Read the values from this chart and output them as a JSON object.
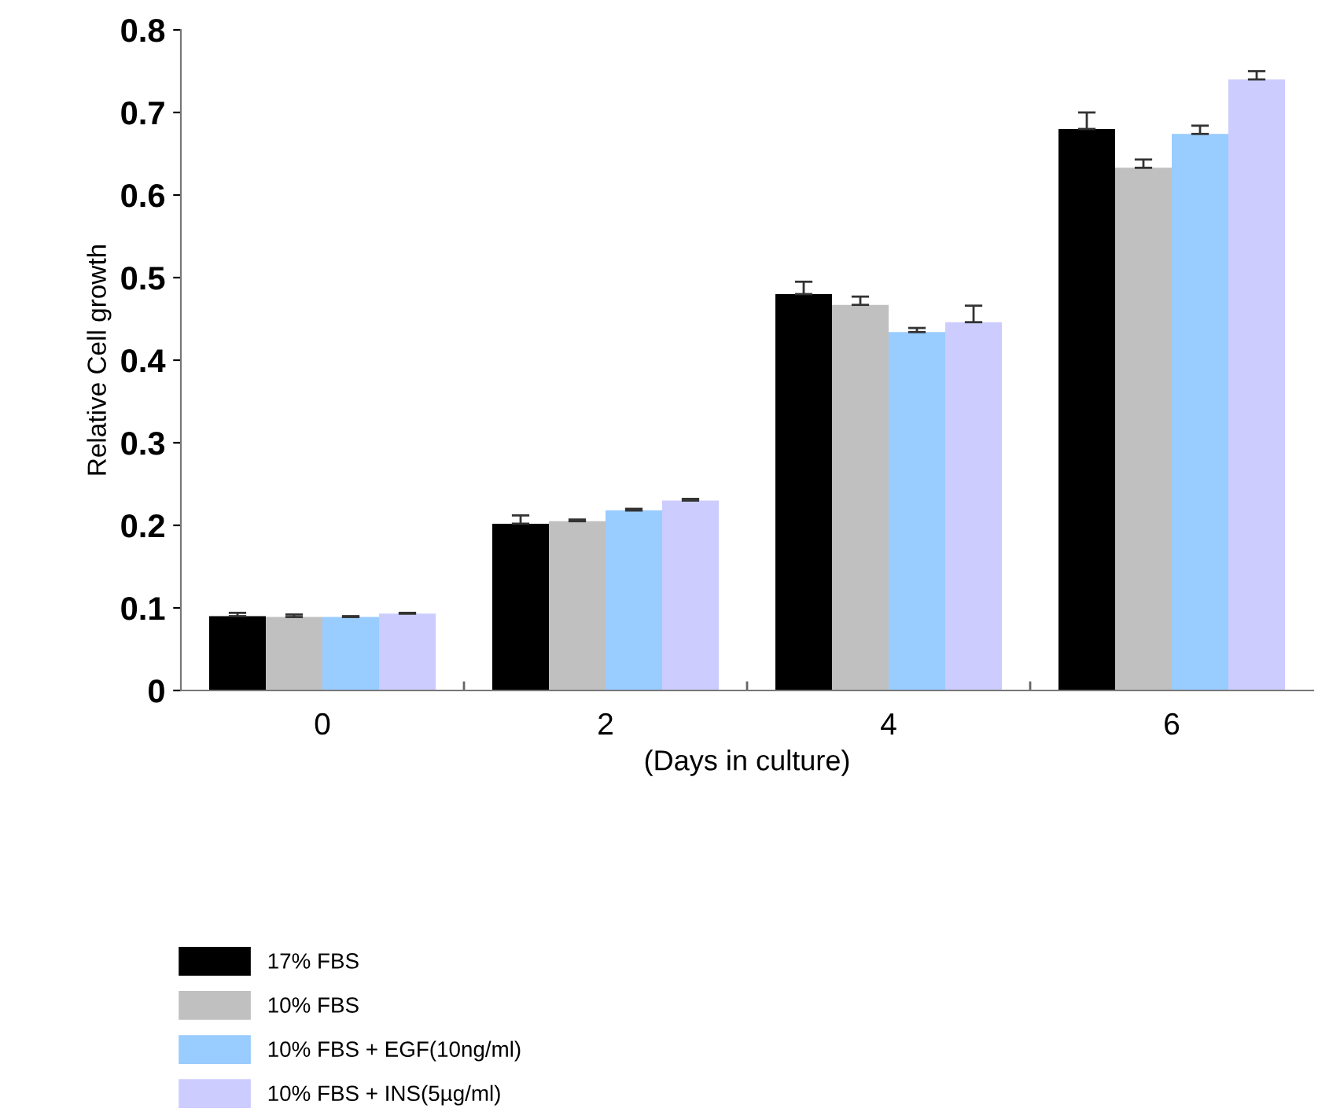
{
  "chart_data": {
    "type": "bar",
    "xlabel": "(Days in culture)",
    "ylabel": "Relative Cell growth",
    "categories": [
      "0",
      "2",
      "4",
      "6"
    ],
    "series": [
      {
        "name": "17% FBS",
        "color": "#000000",
        "values": [
          0.09,
          0.202,
          0.48,
          0.68
        ],
        "errors": [
          [
            0.09,
            0.094
          ],
          [
            0.202,
            0.212
          ],
          [
            0.48,
            0.495
          ],
          [
            0.68,
            0.7
          ]
        ]
      },
      {
        "name": "10% FBS",
        "color": "#c0c0c0",
        "values": [
          0.089,
          0.205,
          0.467,
          0.633
        ],
        "errors": [
          [
            0.089,
            0.092
          ],
          [
            0.205,
            0.207
          ],
          [
            0.467,
            0.477
          ],
          [
            0.633,
            0.643
          ]
        ]
      },
      {
        "name": "10% FBS + EGF(10ng/ml)",
        "color": "#99ccff",
        "values": [
          0.089,
          0.218,
          0.434,
          0.674
        ],
        "errors": [
          [
            0.089,
            0.09
          ],
          [
            0.218,
            0.22
          ],
          [
            0.434,
            0.439
          ],
          [
            0.674,
            0.684
          ]
        ]
      },
      {
        "name": "10% FBS + INS(5µg/ml)",
        "color": "#ccccff",
        "values": [
          0.093,
          0.23,
          0.446,
          0.74
        ],
        "errors": [
          [
            0.093,
            0.094
          ],
          [
            0.23,
            0.232
          ],
          [
            0.446,
            0.466
          ],
          [
            0.74,
            0.75
          ]
        ]
      }
    ],
    "ylim": [
      0,
      0.8
    ],
    "yticks": [
      {
        "value": 0,
        "label": "0"
      },
      0.1,
      0.2,
      0.3,
      0.4,
      0.5,
      0.6,
      0.7,
      0.8
    ],
    "grid": false,
    "legend": "bottom"
  }
}
